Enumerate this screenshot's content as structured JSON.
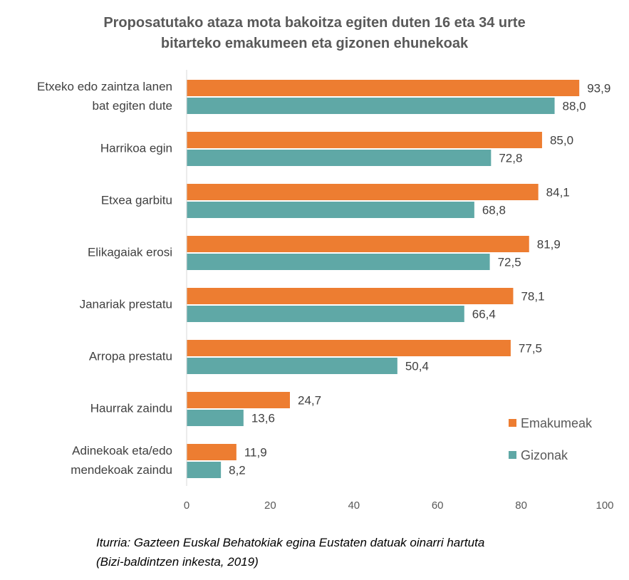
{
  "chart_data": {
    "type": "bar",
    "orientation": "horizontal",
    "title": [
      "Proposatutako ataza mota bakoitza egiten duten 16 eta 34 urte",
      "bitarteko emakumeen eta gizonen ehunekoak"
    ],
    "categories": [
      [
        "Etxeko edo zaintza lanen",
        "bat egiten dute"
      ],
      [
        "Harrikoa egin"
      ],
      [
        "Etxea garbitu"
      ],
      [
        "Elikagaiak erosi"
      ],
      [
        "Janariak prestatu"
      ],
      [
        "Arropa prestatu"
      ],
      [
        "Haurrak zaindu"
      ],
      [
        "Adinekoak eta/edo",
        "mendekoak zaindu"
      ]
    ],
    "series": [
      {
        "name": "Emakumeak",
        "color": "#ED7D31",
        "values": [
          93.9,
          85.0,
          84.1,
          81.9,
          78.1,
          77.5,
          24.7,
          11.9
        ],
        "labels": [
          "93,9",
          "85,0",
          "84,1",
          "81,9",
          "78,1",
          "77,5",
          "24,7",
          "11,9"
        ]
      },
      {
        "name": "Gizonak",
        "color": "#5FA8A6",
        "values": [
          88.0,
          72.8,
          68.8,
          72.5,
          66.4,
          50.4,
          13.6,
          8.2
        ],
        "labels": [
          "88,0",
          "72,8",
          "68,8",
          "72,5",
          "66,4",
          "50,4",
          "13,6",
          "8,2"
        ]
      }
    ],
    "xlim": [
      0,
      100
    ],
    "xticks": [
      "0",
      "20",
      "40",
      "60",
      "80",
      "100"
    ],
    "grid": false,
    "legend": "bottom-right"
  },
  "source": [
    "Iturria: Gazteen Euskal Behatokiak egina Eustaten datuak oinarri hartuta",
    "(Bizi-baldintzen inkesta, 2019)"
  ]
}
